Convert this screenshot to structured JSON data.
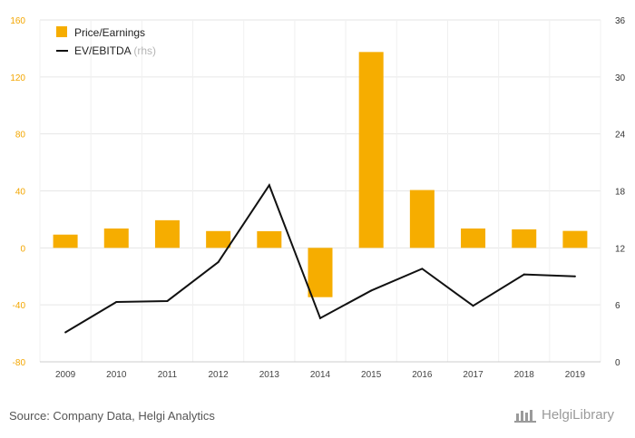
{
  "chart_data": {
    "type": "bar",
    "categories": [
      "2009",
      "2010",
      "2011",
      "2012",
      "2013",
      "2014",
      "2015",
      "2016",
      "2017",
      "2018",
      "2019"
    ],
    "series": [
      {
        "name": "Price/Earnings",
        "type": "bar",
        "axis": "left",
        "color": "#f6ad00",
        "values": [
          9.3,
          13.6,
          19.4,
          11.8,
          11.7,
          -34.6,
          137.5,
          40.6,
          13.6,
          13.0,
          11.9
        ]
      },
      {
        "name": "EV/EBITDA",
        "type": "line",
        "axis": "right",
        "color": "#111111",
        "values": [
          3.1,
          6.3,
          6.4,
          10.5,
          18.6,
          4.6,
          7.5,
          9.8,
          5.9,
          9.2,
          9.0
        ]
      }
    ],
    "legend_rhs_suffix": "(rhs)",
    "y_left": {
      "ylim": [
        -80,
        160
      ],
      "ticks": [
        "160",
        "120",
        "80",
        "40",
        "0",
        "-40",
        "-80"
      ]
    },
    "y_right": {
      "ylim": [
        0,
        36
      ],
      "ticks": [
        "36",
        "30",
        "24",
        "18",
        "12",
        "6",
        "0"
      ]
    },
    "grid": true,
    "legend_position": "top-left"
  },
  "footer": {
    "source": "Source: Company Data, Helgi Analytics",
    "brand": "HelgiLibrary"
  },
  "colors": {
    "bar": "#f6ad00",
    "line": "#111111",
    "grid": "#e6e6e6",
    "left_tick": "#f3a600"
  }
}
